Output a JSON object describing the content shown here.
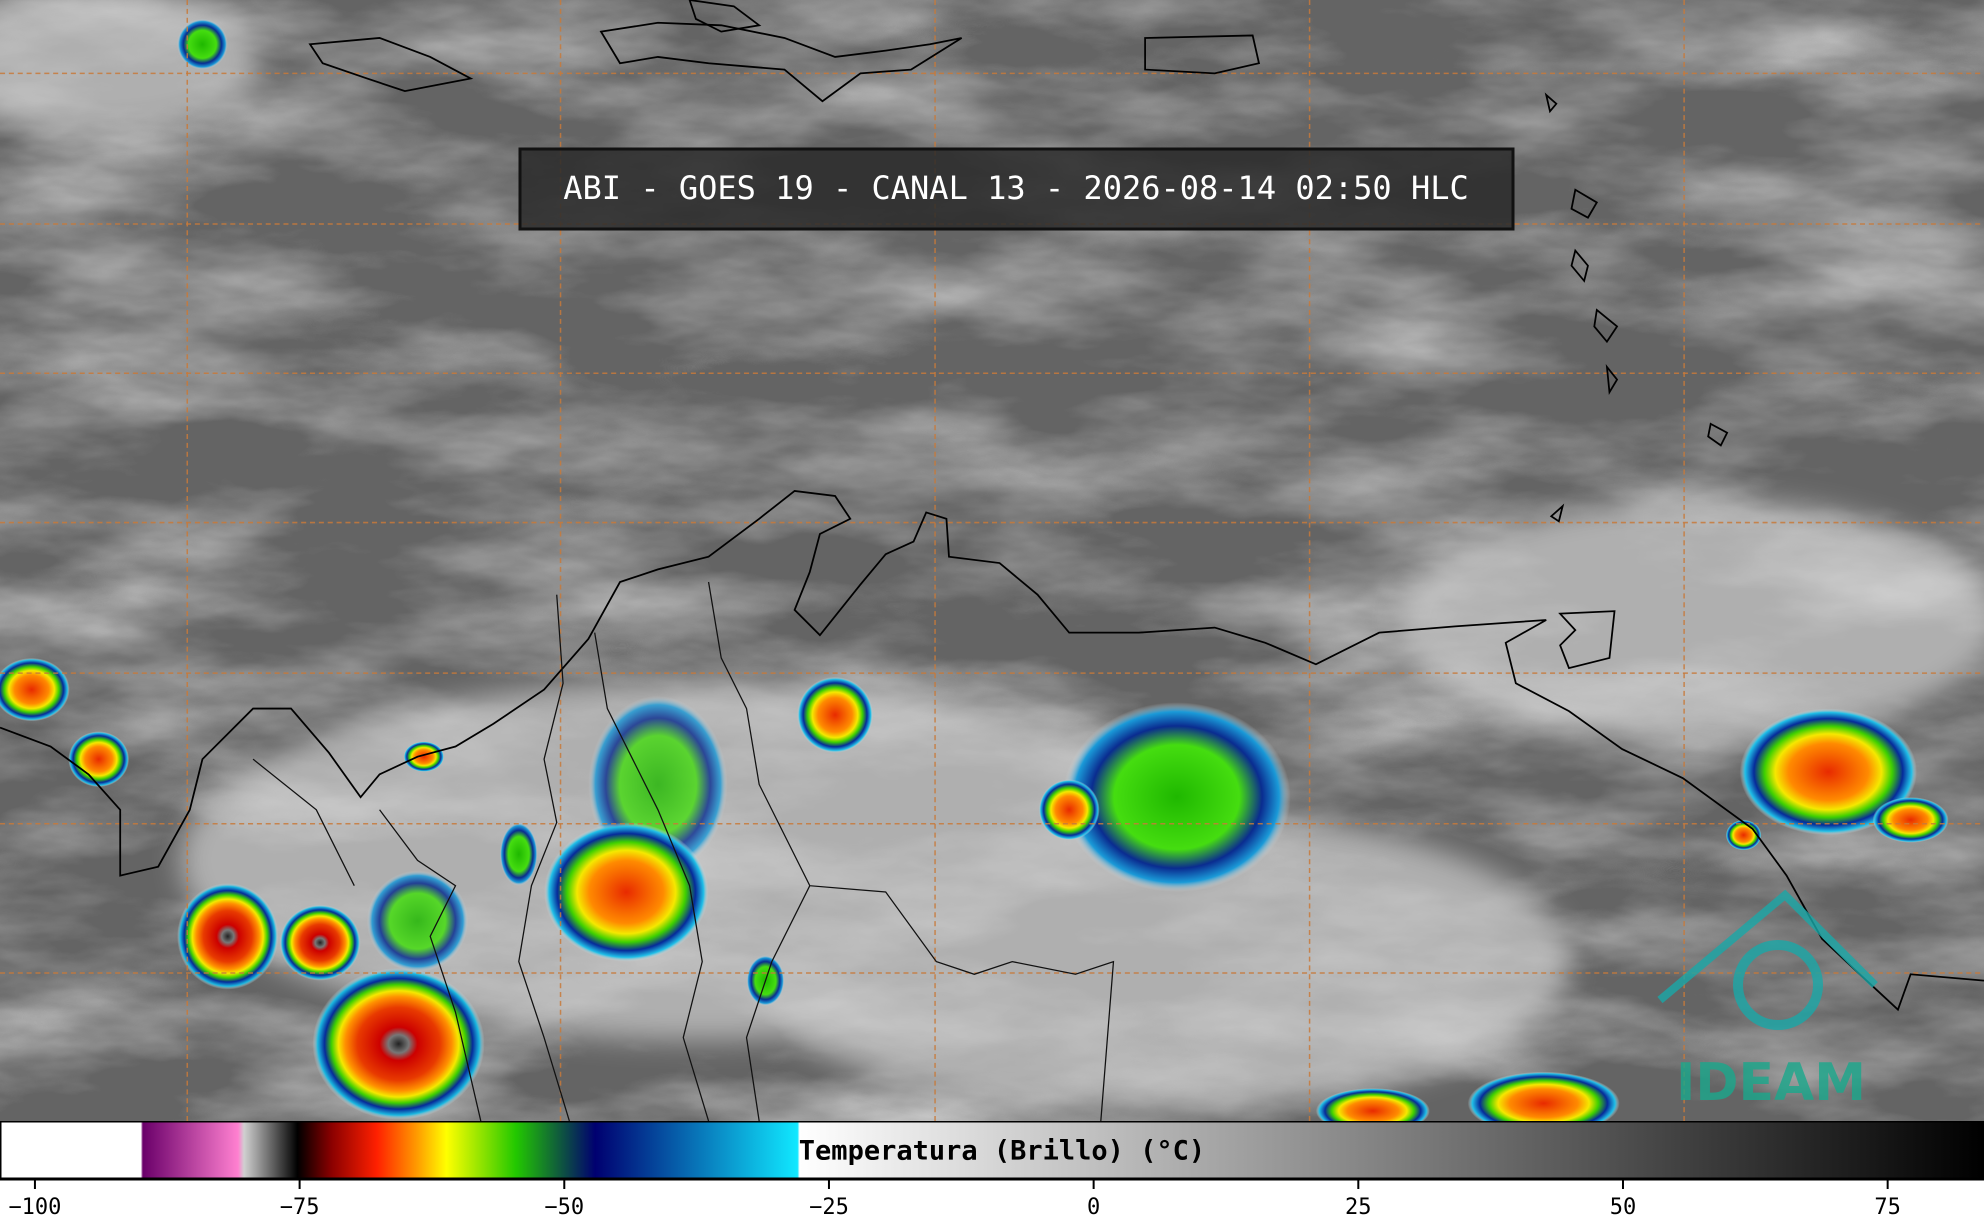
{
  "title": "ABI - GOES 19 - CANAL 13 - 2026-08-14 02:50 HLC",
  "logo": "IDEAM",
  "colorbar": {
    "label": "Temperatura (Brillo) (°C)",
    "xlim": [
      -103.3,
      84.1
    ],
    "xticks": [
      {
        "value": -100,
        "label": "−100"
      },
      {
        "value": -75,
        "label": "−75"
      },
      {
        "value": -50,
        "label": "−50"
      },
      {
        "value": -25,
        "label": "−25"
      },
      0,
      25,
      50,
      75
    ]
  }
}
